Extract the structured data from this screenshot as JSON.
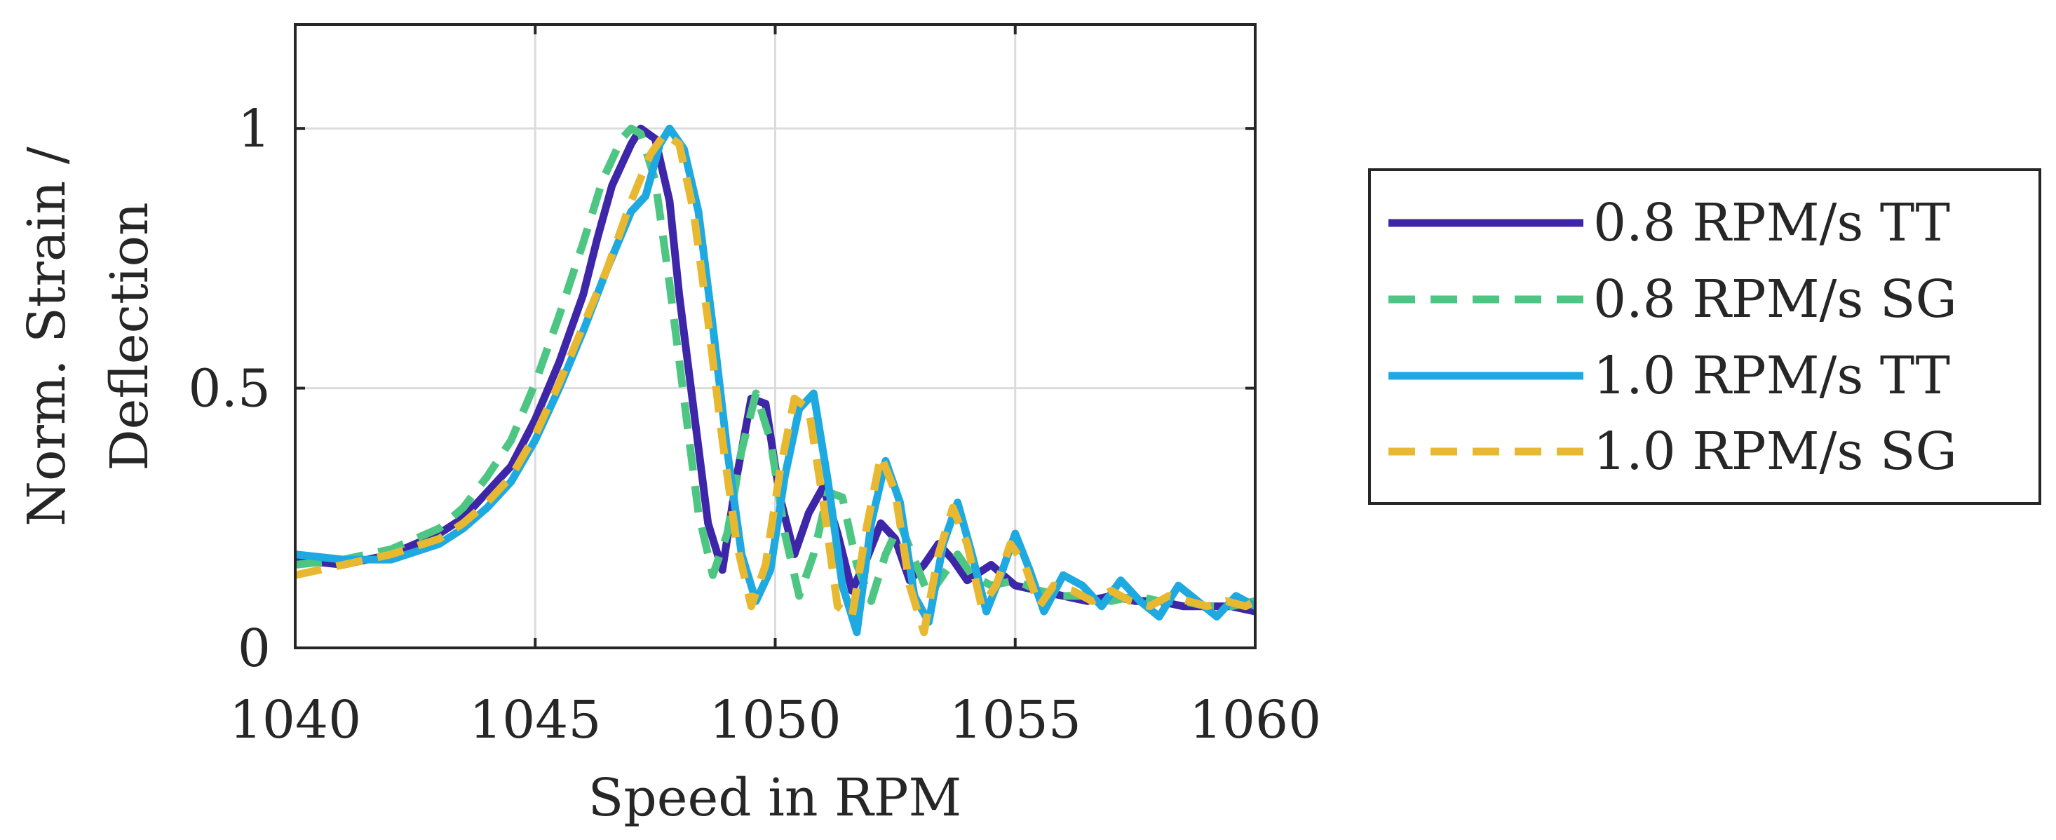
{
  "chart_data": {
    "type": "line",
    "title": "",
    "xlabel": "Speed in RPM",
    "ylabel_lines": [
      "Norm. Strain /",
      "Deflection"
    ],
    "xlim": [
      1040,
      1060
    ],
    "ylim": [
      0,
      1.2
    ],
    "xticks": [
      1040,
      1045,
      1050,
      1055,
      1060
    ],
    "xtick_labels": [
      "1040",
      "1045",
      "1050",
      "1055",
      "1060"
    ],
    "yticks": [
      0,
      0.5,
      1
    ],
    "ytick_labels": [
      "0",
      "0.5",
      "1"
    ],
    "grid": true,
    "legend_position": "outside-right",
    "series": [
      {
        "name": "0.8 RPM/s TT",
        "color": "#3e26a8",
        "dash": "solid",
        "x": [
          1040,
          1041,
          1042,
          1043,
          1043.5,
          1044,
          1044.5,
          1045,
          1045.5,
          1046,
          1046.3,
          1046.6,
          1047,
          1047.2,
          1047.5,
          1047.8,
          1048,
          1048.3,
          1048.6,
          1048.9,
          1049.2,
          1049.5,
          1049.8,
          1050.1,
          1050.4,
          1050.7,
          1051,
          1051.3,
          1051.6,
          1051.9,
          1052.2,
          1052.5,
          1052.8,
          1053.1,
          1053.4,
          1053.7,
          1054,
          1054.5,
          1055,
          1055.5,
          1056,
          1056.5,
          1057,
          1057.5,
          1058,
          1058.5,
          1059,
          1059.5,
          1060
        ],
        "y": [
          0.17,
          0.16,
          0.18,
          0.22,
          0.25,
          0.3,
          0.35,
          0.44,
          0.55,
          0.68,
          0.79,
          0.89,
          0.97,
          1.0,
          0.98,
          0.86,
          0.68,
          0.46,
          0.24,
          0.15,
          0.33,
          0.48,
          0.47,
          0.29,
          0.18,
          0.26,
          0.31,
          0.22,
          0.11,
          0.17,
          0.24,
          0.21,
          0.13,
          0.16,
          0.2,
          0.17,
          0.13,
          0.16,
          0.12,
          0.11,
          0.1,
          0.09,
          0.1,
          0.09,
          0.09,
          0.08,
          0.08,
          0.08,
          0.07
        ]
      },
      {
        "name": "0.8 RPM/s SG",
        "color": "#4ec683",
        "dash": "dashed",
        "x": [
          1040,
          1041,
          1042,
          1043,
          1043.5,
          1044,
          1044.5,
          1045,
          1045.5,
          1046,
          1046.4,
          1046.8,
          1047,
          1047.2,
          1047.5,
          1047.8,
          1048.1,
          1048.4,
          1048.7,
          1049,
          1049.3,
          1049.6,
          1049.9,
          1050.2,
          1050.5,
          1050.8,
          1051.1,
          1051.4,
          1051.7,
          1052,
          1052.3,
          1052.6,
          1052.9,
          1053.2,
          1053.5,
          1053.8,
          1054.1,
          1054.5,
          1055,
          1055.5,
          1056,
          1056.5,
          1057,
          1057.5,
          1058,
          1058.5,
          1059,
          1059.5,
          1060
        ],
        "y": [
          0.16,
          0.17,
          0.19,
          0.23,
          0.27,
          0.33,
          0.4,
          0.51,
          0.64,
          0.78,
          0.9,
          0.98,
          1.0,
          0.99,
          0.9,
          0.7,
          0.48,
          0.26,
          0.14,
          0.22,
          0.38,
          0.49,
          0.4,
          0.22,
          0.1,
          0.18,
          0.3,
          0.29,
          0.16,
          0.09,
          0.18,
          0.24,
          0.17,
          0.1,
          0.14,
          0.18,
          0.14,
          0.12,
          0.13,
          0.11,
          0.1,
          0.1,
          0.09,
          0.1,
          0.09,
          0.09,
          0.08,
          0.08,
          0.09
        ]
      },
      {
        "name": "1.0 RPM/s TT",
        "color": "#1fa9e1",
        "dash": "solid",
        "x": [
          1040,
          1041,
          1042,
          1043,
          1043.5,
          1044,
          1044.5,
          1045,
          1045.5,
          1046,
          1046.5,
          1047,
          1047.3,
          1047.6,
          1047.8,
          1048.1,
          1048.4,
          1048.7,
          1049,
          1049.3,
          1049.6,
          1049.9,
          1050.2,
          1050.5,
          1050.8,
          1051.1,
          1051.4,
          1051.7,
          1052,
          1052.3,
          1052.6,
          1052.9,
          1053.2,
          1053.5,
          1053.8,
          1054.1,
          1054.4,
          1054.7,
          1055,
          1055.3,
          1055.6,
          1056,
          1056.4,
          1056.8,
          1057.2,
          1057.6,
          1058,
          1058.4,
          1058.8,
          1059.2,
          1059.6,
          1060
        ],
        "y": [
          0.18,
          0.17,
          0.17,
          0.2,
          0.23,
          0.27,
          0.32,
          0.4,
          0.5,
          0.61,
          0.73,
          0.84,
          0.87,
          0.97,
          1.0,
          0.96,
          0.84,
          0.62,
          0.38,
          0.18,
          0.09,
          0.15,
          0.33,
          0.46,
          0.49,
          0.32,
          0.12,
          0.03,
          0.24,
          0.36,
          0.28,
          0.1,
          0.05,
          0.2,
          0.28,
          0.18,
          0.07,
          0.14,
          0.22,
          0.15,
          0.07,
          0.14,
          0.12,
          0.08,
          0.13,
          0.09,
          0.06,
          0.12,
          0.09,
          0.06,
          0.1,
          0.08
        ]
      },
      {
        "name": "1.0 RPM/s SG",
        "color": "#e8b830",
        "dash": "dashed",
        "x": [
          1040,
          1041,
          1042,
          1043,
          1043.5,
          1044,
          1044.5,
          1045,
          1045.5,
          1046,
          1046.5,
          1047,
          1047.4,
          1047.7,
          1048,
          1048.3,
          1048.6,
          1048.9,
          1049.2,
          1049.5,
          1049.8,
          1050.1,
          1050.4,
          1050.7,
          1051,
          1051.3,
          1051.6,
          1051.9,
          1052.2,
          1052.5,
          1052.8,
          1053.1,
          1053.4,
          1053.7,
          1054,
          1054.3,
          1054.6,
          1054.9,
          1055.2,
          1055.5,
          1055.8,
          1056.2,
          1056.6,
          1057,
          1057.4,
          1057.8,
          1058.2,
          1058.6,
          1059,
          1059.4,
          1059.8,
          1060
        ],
        "y": [
          0.14,
          0.16,
          0.18,
          0.21,
          0.24,
          0.28,
          0.33,
          0.41,
          0.51,
          0.62,
          0.73,
          0.86,
          0.95,
          0.99,
          0.97,
          0.84,
          0.63,
          0.4,
          0.2,
          0.08,
          0.16,
          0.34,
          0.48,
          0.46,
          0.28,
          0.08,
          0.06,
          0.23,
          0.37,
          0.3,
          0.12,
          0.03,
          0.18,
          0.27,
          0.2,
          0.08,
          0.12,
          0.2,
          0.16,
          0.08,
          0.12,
          0.11,
          0.09,
          0.11,
          0.09,
          0.08,
          0.1,
          0.09,
          0.08,
          0.09,
          0.08,
          0.09
        ]
      }
    ]
  }
}
